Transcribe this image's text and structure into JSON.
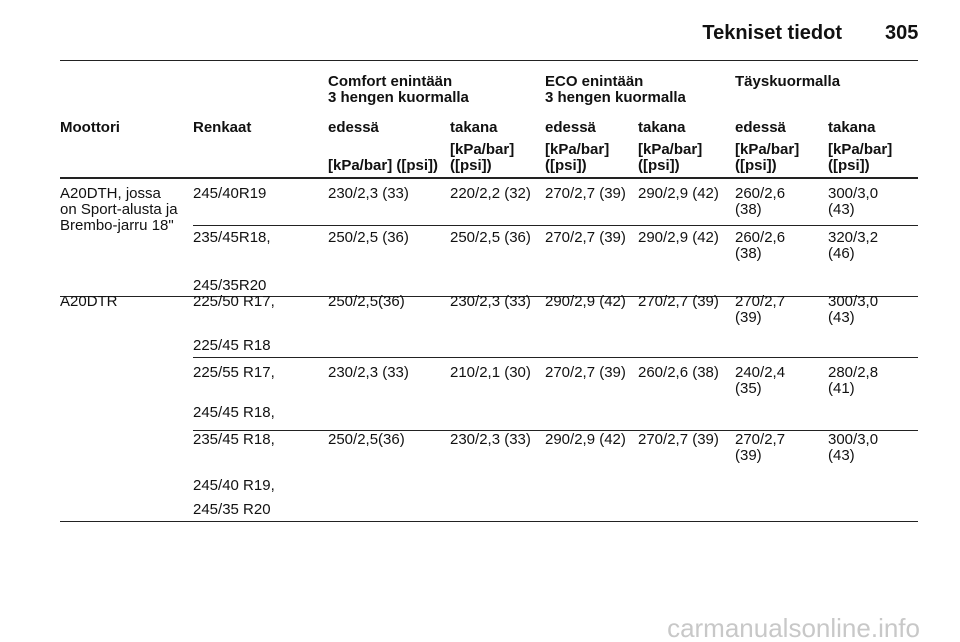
{
  "header": {
    "title": "Tekniset tiedot",
    "page": "305"
  },
  "table": {
    "groups": [
      [
        "Comfort enintään",
        "3 hengen kuormalla"
      ],
      [
        "ECO enintään",
        "3 hengen kuormalla"
      ],
      [
        "Täyskuormalla"
      ]
    ],
    "columns": [
      "Moottori",
      "Renkaat",
      "edessä",
      "takana",
      "edessä",
      "takana",
      "edessä",
      "takana"
    ],
    "units": [
      [
        "[kPa/bar] ([psi])"
      ],
      [
        "[kPa/bar]",
        "([psi])"
      ],
      [
        "[kPa/bar]",
        "([psi])"
      ],
      [
        "[kPa/bar]",
        "([psi])"
      ],
      [
        "[kPa/bar]",
        "([psi])"
      ],
      [
        "[kPa/bar]",
        "([psi])"
      ]
    ],
    "sections": [
      {
        "engine": [
          "A20DTH, jossa",
          "on Sport-alusta ja",
          "Brembo-jarru 18\""
        ],
        "rows": [
          {
            "tires": [
              "245/40R19"
            ],
            "values": [
              "230/2,3 (33)",
              "220/2,2 (32)",
              "270/2,7 (39)",
              "290/2,9 (42)",
              "260/2,6 (38)",
              "300/3,0 (43)"
            ]
          },
          {
            "tires": [
              "235/45R18,",
              "245/35R20"
            ],
            "values": [
              "250/2,5 (36)",
              "250/2,5 (36)",
              "270/2,7 (39)",
              "290/2,9 (42)",
              "260/2,6 (38)",
              "320/3,2 (46)"
            ]
          }
        ]
      },
      {
        "engine": [
          "A20DTR"
        ],
        "rows": [
          {
            "tires": [
              "225/50 R17,",
              "225/45 R18"
            ],
            "values": [
              "250/2,5(36)",
              "230/2,3 (33)",
              "290/2,9 (42)",
              "270/2,7 (39)",
              "270/2,7 (39)",
              "300/3,0 (43)"
            ]
          },
          {
            "tires": [
              "225/55 R17,",
              "245/45 R18,"
            ],
            "values": [
              "230/2,3 (33)",
              "210/2,1 (30)",
              "270/2,7 (39)",
              "260/2,6 (38)",
              "240/2,4 (35)",
              "280/2,8 (41)"
            ]
          },
          {
            "tires": [
              "235/45 R18,",
              "245/40 R19,",
              "245/35 R20"
            ],
            "values": [
              "250/2,5(36)",
              "230/2,3 (33)",
              "290/2,9 (42)",
              "270/2,7 (39)",
              "270/2,7 (39)",
              "300/3,0 (43)"
            ]
          }
        ]
      }
    ]
  },
  "watermark": "carmanualsonline.info"
}
